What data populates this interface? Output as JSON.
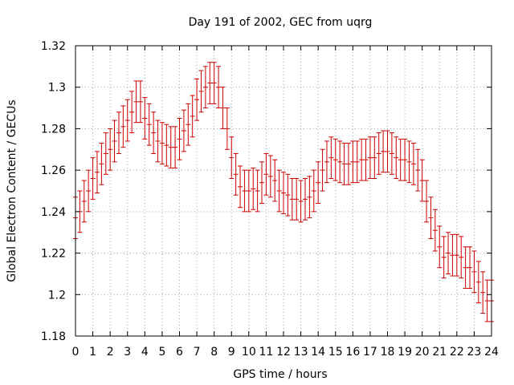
{
  "chart_data": {
    "type": "scatter",
    "style": "errorbars",
    "title": "Day 191 of 2002, GEC from uqrg",
    "xlabel": "GPS time / hours",
    "ylabel": "Global Electron Content / GECUs",
    "xlim": [
      0,
      24
    ],
    "ylim": [
      1.18,
      1.32
    ],
    "xticks": [
      "0",
      "1",
      "2",
      "3",
      "4",
      "5",
      "6",
      "7",
      "8",
      "9",
      "10",
      "11",
      "12",
      "13",
      "14",
      "15",
      "16",
      "17",
      "18",
      "19",
      "20",
      "21",
      "22",
      "23",
      "24"
    ],
    "yticks": [
      "1.18",
      "1.2",
      "1.22",
      "1.24",
      "1.26",
      "1.28",
      "1.3",
      "1.32"
    ],
    "grid": true,
    "series_color": "#cc0000",
    "error": 0.01,
    "x": [
      0,
      0.25,
      0.5,
      0.75,
      1,
      1.25,
      1.5,
      1.75,
      2,
      2.25,
      2.5,
      2.75,
      3,
      3.25,
      3.5,
      3.75,
      4,
      4.25,
      4.5,
      4.75,
      5,
      5.25,
      5.5,
      5.75,
      6,
      6.25,
      6.5,
      6.75,
      7,
      7.25,
      7.5,
      7.75,
      8,
      8.25,
      8.5,
      8.75,
      9,
      9.25,
      9.5,
      9.75,
      10,
      10.25,
      10.5,
      10.75,
      11,
      11.25,
      11.5,
      11.75,
      12,
      12.25,
      12.5,
      12.75,
      13,
      13.25,
      13.5,
      13.75,
      14,
      14.25,
      14.5,
      14.75,
      15,
      15.25,
      15.5,
      15.75,
      16,
      16.25,
      16.5,
      16.75,
      17,
      17.25,
      17.5,
      17.75,
      18,
      18.25,
      18.5,
      18.75,
      19,
      19.25,
      19.5,
      19.75,
      20,
      20.25,
      20.5,
      20.75,
      21,
      21.25,
      21.5,
      21.75,
      22,
      22.25,
      22.5,
      22.75,
      23,
      23.25,
      23.5,
      23.75,
      24
    ],
    "y": [
      1.237,
      1.24,
      1.245,
      1.25,
      1.256,
      1.259,
      1.263,
      1.268,
      1.27,
      1.274,
      1.278,
      1.281,
      1.284,
      1.288,
      1.293,
      1.293,
      1.285,
      1.282,
      1.278,
      1.274,
      1.273,
      1.272,
      1.271,
      1.271,
      1.275,
      1.279,
      1.282,
      1.286,
      1.294,
      1.298,
      1.3,
      1.302,
      1.302,
      1.3,
      1.29,
      1.28,
      1.266,
      1.258,
      1.252,
      1.25,
      1.25,
      1.251,
      1.25,
      1.254,
      1.258,
      1.257,
      1.255,
      1.25,
      1.249,
      1.248,
      1.246,
      1.246,
      1.245,
      1.246,
      1.247,
      1.25,
      1.254,
      1.26,
      1.264,
      1.266,
      1.265,
      1.264,
      1.263,
      1.263,
      1.264,
      1.264,
      1.265,
      1.265,
      1.266,
      1.266,
      1.268,
      1.269,
      1.269,
      1.268,
      1.266,
      1.265,
      1.265,
      1.264,
      1.263,
      1.26,
      1.255,
      1.245,
      1.237,
      1.231,
      1.223,
      1.218,
      1.22,
      1.219,
      1.219,
      1.218,
      1.213,
      1.213,
      1.211,
      1.206,
      1.201,
      1.197,
      1.197
    ]
  }
}
